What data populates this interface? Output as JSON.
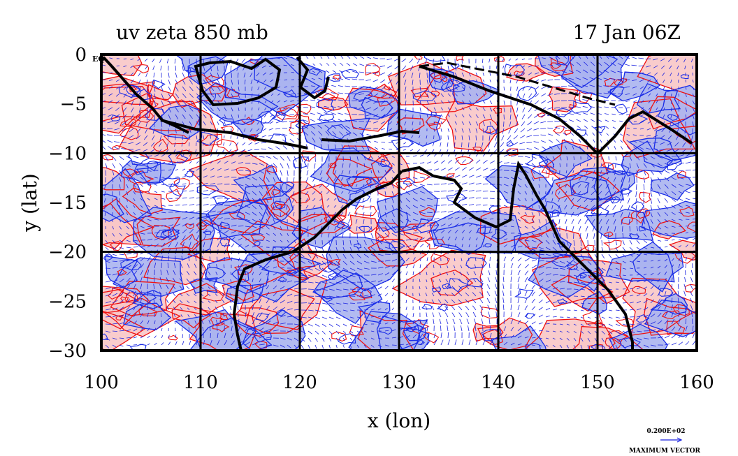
{
  "title_left": "uv zeta 850 mb",
  "title_right": "17 Jan 06Z",
  "eq_label": "EQ",
  "chart_data": {
    "type": "map",
    "xlabel": "x (lon)",
    "ylabel": "y (lat)",
    "xlim": [
      100,
      160
    ],
    "ylim": [
      -30,
      0
    ],
    "x_ticks": [
      "100",
      "110",
      "120",
      "130",
      "140",
      "150",
      "160"
    ],
    "y_ticks": [
      "0",
      "−5",
      "−10",
      "−15",
      "−20",
      "−25",
      "−30"
    ],
    "grid": true,
    "fields": [
      "850 mb wind vectors (blue arrows)",
      "relative vorticity positive (red contours, pink fill)",
      "relative vorticity negative (blue contours, light blue fill)"
    ],
    "colors": {
      "positive_fill": "#f8c6c6",
      "positive_line": "#ee1111",
      "negative_fill": "#aab4f0",
      "negative_line": "#1a2ee8",
      "vector": "#1a22e0",
      "coast": "#000000"
    }
  },
  "max_vector": {
    "value": "0.200E+02",
    "label": "MAXIMUM VECTOR"
  }
}
